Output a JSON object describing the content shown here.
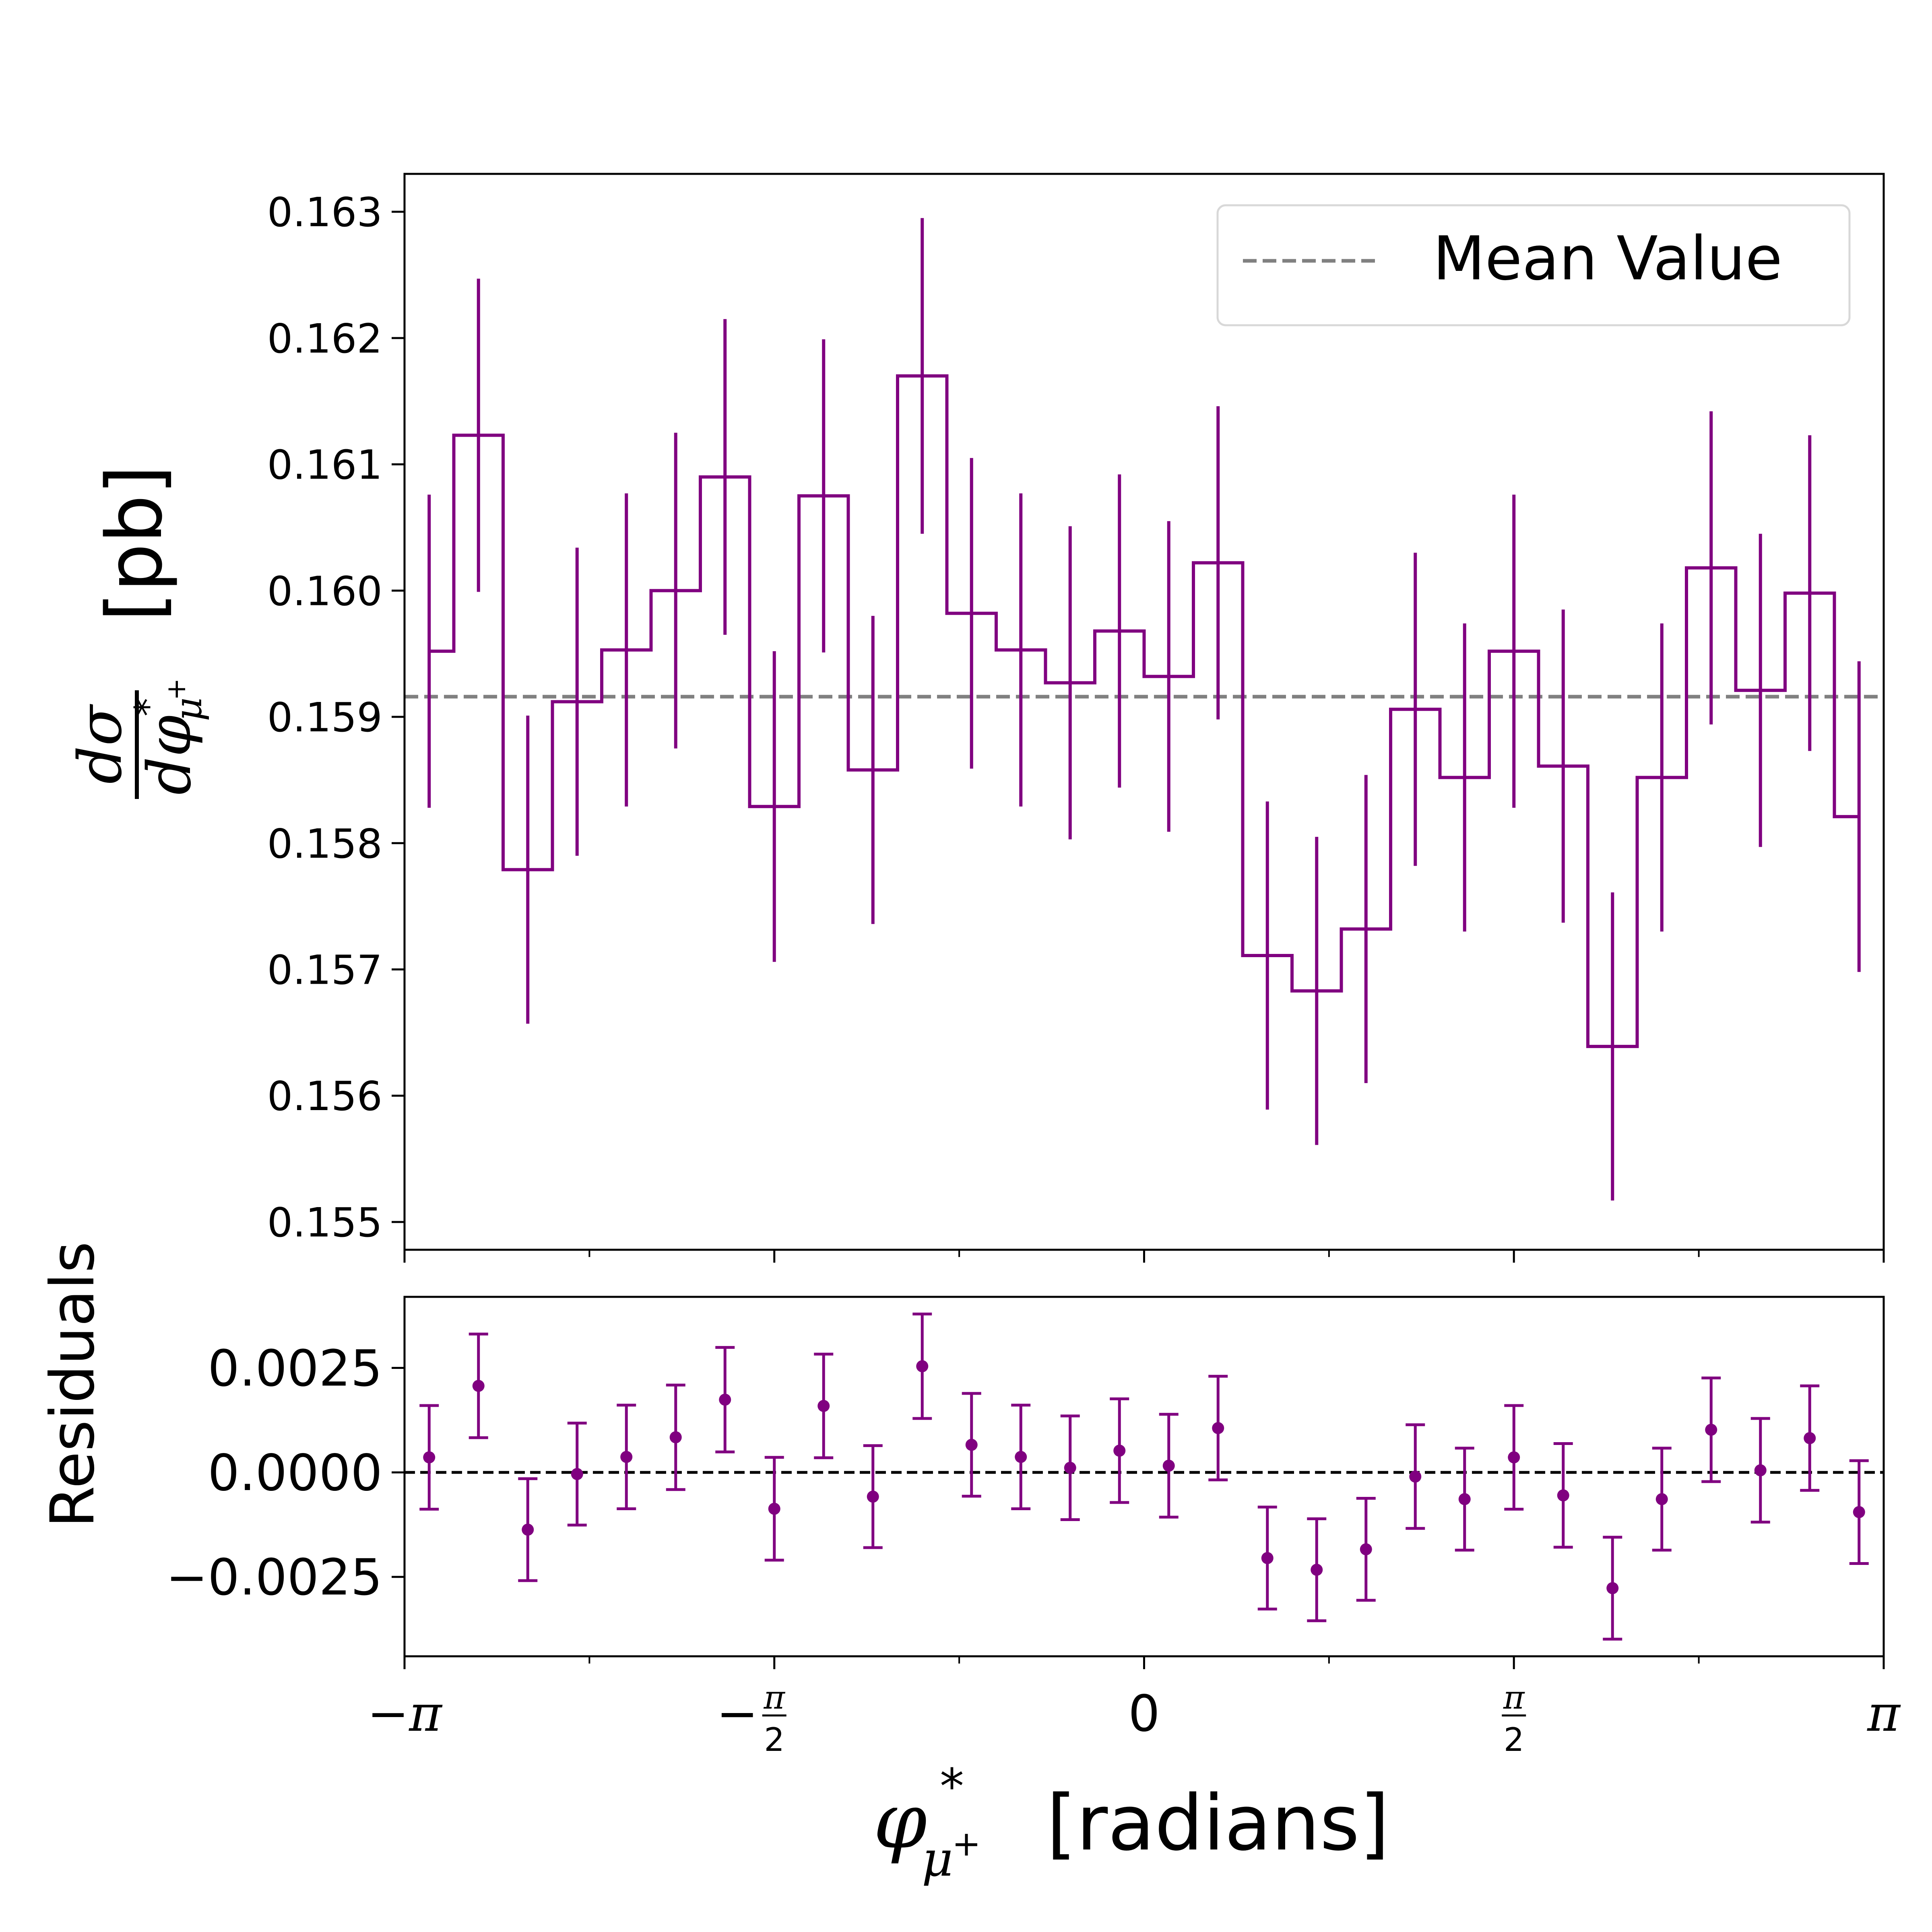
{
  "chart_data": [
    {
      "type": "line",
      "subtype": "step-with-errorbars",
      "panel": "main",
      "ylabel": "[pb]",
      "ylabel_math": {
        "numerator": "dσ",
        "denominator": "dφ",
        "sup": "*",
        "sub": "μ",
        "subsup": "+"
      },
      "ylim": [
        0.15478,
        0.1633
      ],
      "yticks": [
        "0.155",
        "0.156",
        "0.157",
        "0.158",
        "0.159",
        "0.160",
        "0.161",
        "0.162",
        "0.163"
      ],
      "x_range": [
        -3.14159,
        3.14159
      ],
      "bin_count": 30,
      "series": [
        {
          "name": "",
          "color": "#800080",
          "values": [
            0.15952,
            0.16123,
            0.15779,
            0.15912,
            0.15953,
            0.16,
            0.1609,
            0.15829,
            0.16075,
            0.15858,
            0.1617,
            0.15982,
            0.15953,
            0.15927,
            0.15968,
            0.15932,
            0.16022,
            0.15711,
            0.15683,
            0.15732,
            0.15906,
            0.15852,
            0.15952,
            0.15861,
            0.15639,
            0.15852,
            0.16018,
            0.15921,
            0.15998,
            0.15821
          ],
          "errors": [
            0.00124,
            0.00124,
            0.00122,
            0.00122,
            0.00124,
            0.00125,
            0.00125,
            0.00123,
            0.00124,
            0.00122,
            0.00125,
            0.00123,
            0.00124,
            0.00124,
            0.00124,
            0.00123,
            0.00124,
            0.00122,
            0.00122,
            0.00122,
            0.00124,
            0.00122,
            0.00124,
            0.00124,
            0.00122,
            0.00122,
            0.00124,
            0.00124,
            0.00125,
            0.00123
          ]
        }
      ],
      "mean_line": {
        "name": "Mean Value",
        "value": 0.15916,
        "color": "#808080",
        "style": "dashed"
      },
      "legend": {
        "position": "top-right",
        "entries": [
          "Mean Value"
        ]
      },
      "grid": false
    },
    {
      "type": "scatter",
      "subtype": "points-with-errorbars",
      "panel": "residuals",
      "ylabel": "Residuals",
      "ylim": [
        -0.0044,
        0.0042
      ],
      "yticks": [
        "−0.0025",
        "0.0000",
        "0.0025"
      ],
      "xlabel": "[radians]",
      "xlabel_math": {
        "symbol": "φ",
        "sup": "*",
        "sub": "μ",
        "subsup": "+"
      },
      "xticks": [
        {
          "value": -3.14159,
          "label": "−π"
        },
        {
          "value": -1.5708,
          "label": "−π/2"
        },
        {
          "value": 0,
          "label": "0"
        },
        {
          "value": 1.5708,
          "label": "π/2"
        },
        {
          "value": 3.14159,
          "label": "π"
        }
      ],
      "series": [
        {
          "name": "",
          "color": "#800080",
          "values": [
            0.00036,
            0.00207,
            -0.00137,
            -4e-05,
            0.00037,
            0.00084,
            0.00174,
            -0.00087,
            0.00159,
            -0.00058,
            0.00254,
            0.00066,
            0.00037,
            0.00011,
            0.00052,
            0.00016,
            0.00106,
            -0.00205,
            -0.00233,
            -0.00184,
            -0.0001,
            -0.00064,
            0.00036,
            -0.00055,
            -0.00277,
            -0.00064,
            0.00102,
            5e-05,
            0.00082,
            -0.00095
          ],
          "errors": [
            0.00124,
            0.00124,
            0.00122,
            0.00122,
            0.00124,
            0.00125,
            0.00125,
            0.00123,
            0.00124,
            0.00122,
            0.00125,
            0.00123,
            0.00124,
            0.00124,
            0.00124,
            0.00123,
            0.00124,
            0.00122,
            0.00122,
            0.00122,
            0.00124,
            0.00122,
            0.00124,
            0.00124,
            0.00122,
            0.00122,
            0.00124,
            0.00124,
            0.00125,
            0.00123
          ]
        }
      ],
      "zero_line": {
        "value": 0,
        "color": "#000000",
        "style": "dashed"
      },
      "grid": false
    }
  ]
}
